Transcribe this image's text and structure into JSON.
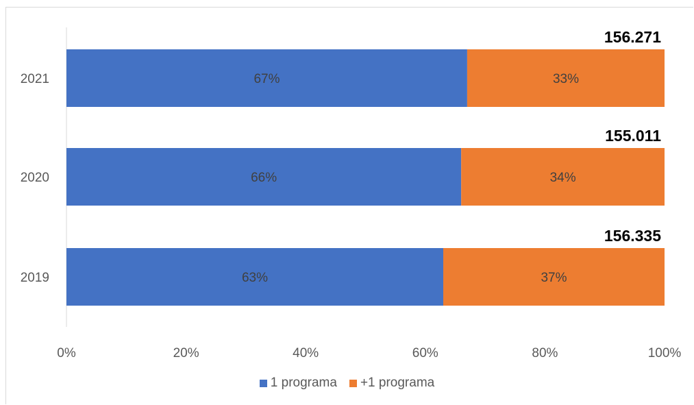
{
  "chart_data": {
    "type": "bar",
    "orientation": "horizontal",
    "stacked": "percent",
    "categories": [
      "2021",
      "2020",
      "2019"
    ],
    "series": [
      {
        "name": "1 programa",
        "values": [
          67,
          66,
          63
        ],
        "labels": [
          "67%",
          "66%",
          "63%"
        ],
        "color": "#4472c4"
      },
      {
        "name": "+1 programa",
        "values": [
          33,
          34,
          37
        ],
        "labels": [
          "33%",
          "34%",
          "37%"
        ],
        "color": "#ed7d31"
      }
    ],
    "totals": [
      "156.271",
      "155.011",
      "156.335"
    ],
    "xlim": [
      0,
      100
    ],
    "xticks": [
      "0%",
      "20%",
      "40%",
      "60%",
      "80%",
      "100%"
    ],
    "grid": false,
    "legend_position": "bottom"
  }
}
